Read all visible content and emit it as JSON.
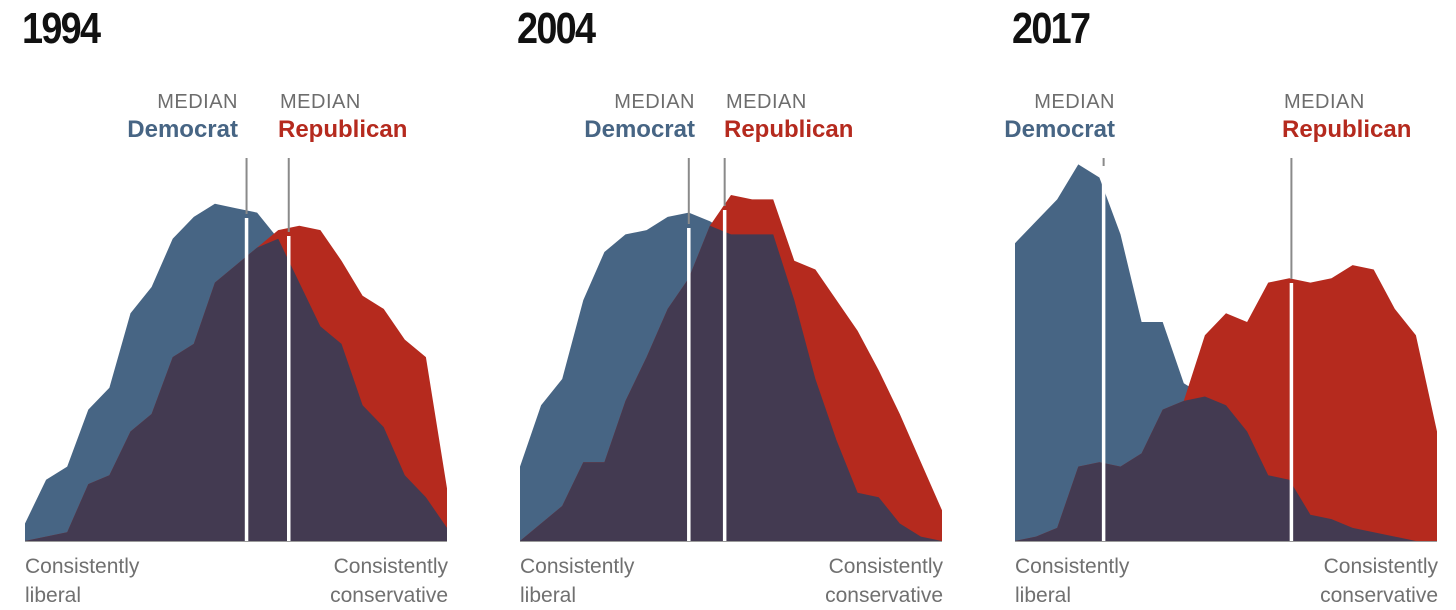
{
  "colors": {
    "democrat": "#476584",
    "republican": "#b52a1e",
    "overlap": "#433a51",
    "median_line": "#ffffff",
    "leader_line": "#8a8a8a",
    "axis": "#9a9a9a"
  },
  "legend": {
    "median_label": "MEDIAN",
    "democrat": "Democrat",
    "republican": "Republican"
  },
  "axis_labels": {
    "left_line1": "Consistently",
    "left_line2": "liberal",
    "right_line1": "Consistently",
    "right_line2": "conservative"
  },
  "chart_data": [
    {
      "type": "area",
      "title": "1994",
      "xlim": [
        0,
        20
      ],
      "ylim": [
        0,
        8.7
      ],
      "x": [
        0,
        1,
        2,
        3,
        4,
        5,
        6,
        7,
        8,
        9,
        10,
        11,
        12,
        13,
        14,
        15,
        16,
        17,
        18,
        19,
        20
      ],
      "series": [
        {
          "name": "Democrat",
          "color": "#476584",
          "values": [
            0.4,
            1.4,
            1.7,
            3.0,
            3.5,
            5.2,
            5.8,
            6.9,
            7.4,
            7.7,
            7.6,
            7.5,
            6.9,
            5.9,
            4.9,
            4.5,
            3.1,
            2.6,
            1.5,
            1.0,
            0.3
          ]
        },
        {
          "name": "Republican",
          "color": "#b52a1e",
          "values": [
            0.0,
            0.1,
            0.2,
            1.3,
            1.5,
            2.5,
            2.9,
            4.2,
            4.5,
            5.9,
            6.3,
            6.7,
            7.1,
            7.2,
            7.1,
            6.4,
            5.6,
            5.3,
            4.6,
            4.2,
            1.2
          ]
        }
      ],
      "median_democrat": 10.5,
      "median_republican": 12.5,
      "label_democrat_align": "right",
      "label_republican_align": "left"
    },
    {
      "type": "area",
      "title": "2004",
      "xlim": [
        0,
        20
      ],
      "ylim": [
        0,
        8.7
      ],
      "x": [
        0,
        1,
        2,
        3,
        4,
        5,
        6,
        7,
        8,
        9,
        10,
        11,
        12,
        13,
        14,
        15,
        16,
        17,
        18,
        19,
        20
      ],
      "series": [
        {
          "name": "Democrat",
          "color": "#476584",
          "values": [
            1.7,
            3.1,
            3.7,
            5.5,
            6.6,
            7.0,
            7.1,
            7.4,
            7.5,
            7.3,
            7.0,
            7.0,
            7.0,
            5.5,
            3.7,
            2.3,
            1.1,
            1.0,
            0.4,
            0.1,
            0.0
          ]
        },
        {
          "name": "Republican",
          "color": "#b52a1e",
          "values": [
            0.0,
            0.4,
            0.8,
            1.8,
            1.8,
            3.2,
            4.2,
            5.3,
            6.0,
            7.2,
            7.9,
            7.8,
            7.8,
            6.4,
            6.2,
            5.5,
            4.8,
            3.9,
            2.9,
            1.8,
            0.7
          ]
        }
      ],
      "median_democrat": 8.0,
      "median_republican": 9.7,
      "label_democrat_align": "right",
      "label_republican_align": "left"
    },
    {
      "type": "area",
      "title": "2017",
      "xlim": [
        0,
        20
      ],
      "ylim": [
        0,
        8.7
      ],
      "x": [
        0,
        1,
        2,
        3,
        4,
        5,
        6,
        7,
        8,
        9,
        10,
        11,
        12,
        13,
        14,
        15,
        16,
        17,
        18,
        19,
        20
      ],
      "series": [
        {
          "name": "Democrat",
          "color": "#476584",
          "values": [
            6.8,
            7.3,
            7.8,
            8.6,
            8.3,
            7.0,
            5.0,
            5.0,
            3.6,
            3.3,
            3.1,
            2.5,
            1.5,
            1.4,
            0.6,
            0.5,
            0.3,
            0.2,
            0.1,
            0.0,
            0.0
          ]
        },
        {
          "name": "Republican",
          "color": "#b52a1e",
          "values": [
            0.0,
            0.1,
            0.3,
            1.7,
            1.8,
            1.7,
            2.0,
            3.0,
            3.2,
            4.7,
            5.2,
            5.0,
            5.9,
            6.0,
            5.9,
            6.0,
            6.3,
            6.2,
            5.3,
            4.7,
            2.5
          ]
        }
      ],
      "median_democrat": 4.2,
      "median_republican": 13.1,
      "label_democrat_align": "right",
      "label_republican_align": "left"
    }
  ]
}
